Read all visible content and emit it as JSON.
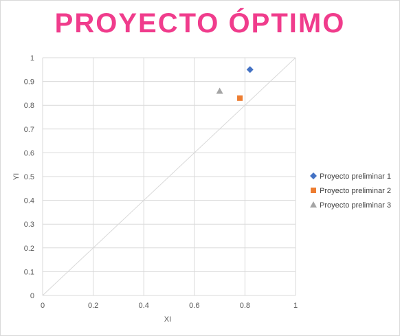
{
  "chart_data": {
    "type": "scatter",
    "title": "PROYECTO ÓPTIMO",
    "xlabel": "XI",
    "ylabel": "YI",
    "xlim": [
      0,
      1
    ],
    "ylim": [
      0,
      1
    ],
    "x_ticks": [
      "0",
      "0.2",
      "0.4",
      "0.6",
      "0.8",
      "1"
    ],
    "y_ticks": [
      "0",
      "0.1",
      "0.2",
      "0.3",
      "0.4",
      "0.5",
      "0.6",
      "0.7",
      "0.8",
      "0.9",
      "1"
    ],
    "grid": true,
    "legend_position": "right",
    "reference_line": {
      "from": [
        0,
        0
      ],
      "to": [
        1,
        1
      ],
      "color": "#d9d9d9"
    },
    "series": [
      {
        "name": "Proyecto preliminar 1",
        "marker": "diamond",
        "color": "#4472c4",
        "x": [
          0.82
        ],
        "y": [
          0.95
        ]
      },
      {
        "name": "Proyecto preliminar 2",
        "marker": "square",
        "color": "#ed7d31",
        "x": [
          0.78
        ],
        "y": [
          0.83
        ]
      },
      {
        "name": "Proyecto preliminar 3",
        "marker": "triangle",
        "color": "#a5a5a5",
        "x": [
          0.7
        ],
        "y": [
          0.86
        ]
      }
    ]
  }
}
